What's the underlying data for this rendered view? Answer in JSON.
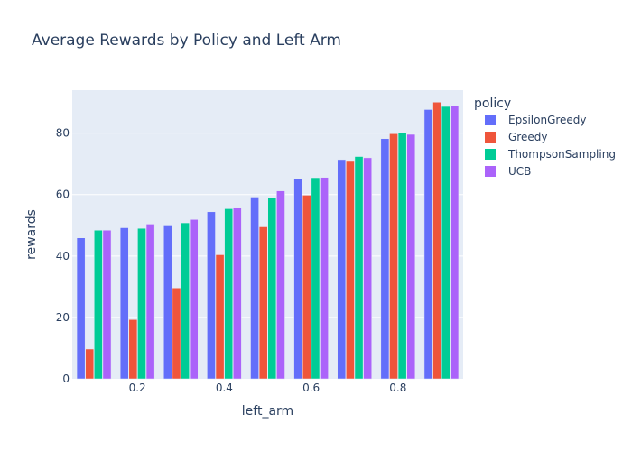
{
  "chart_data": {
    "type": "bar",
    "title": "Average Rewards by Policy and Left Arm",
    "xlabel": "left_arm",
    "ylabel": "rewards",
    "x": [
      0.1,
      0.2,
      0.3,
      0.4,
      0.5,
      0.6,
      0.7,
      0.8,
      0.9
    ],
    "xlim": [
      0.05,
      0.95
    ],
    "ylim": [
      0,
      94
    ],
    "xticks": [
      0.2,
      0.4,
      0.6,
      0.8
    ],
    "yticks": [
      0,
      20,
      40,
      60,
      80
    ],
    "grid": true,
    "legend": {
      "title": "policy",
      "position": "right"
    },
    "series": [
      {
        "name": "EpsilonGreedy",
        "color": "#636efa",
        "values": [
          45.9,
          49.2,
          50.1,
          54.4,
          59.2,
          65.0,
          71.4,
          78.2,
          87.7
        ]
      },
      {
        "name": "Greedy",
        "color": "#EF553B",
        "values": [
          9.7,
          19.3,
          29.6,
          40.4,
          49.5,
          59.8,
          70.8,
          79.8,
          90.1
        ]
      },
      {
        "name": "ThompsonSampling",
        "color": "#00cc96",
        "values": [
          48.4,
          49.0,
          50.8,
          55.4,
          58.9,
          65.5,
          72.4,
          80.1,
          88.7
        ]
      },
      {
        "name": "UCB",
        "color": "#ab63fa",
        "values": [
          48.4,
          50.4,
          51.9,
          55.6,
          61.2,
          65.6,
          72.0,
          79.6,
          88.8
        ]
      }
    ]
  }
}
